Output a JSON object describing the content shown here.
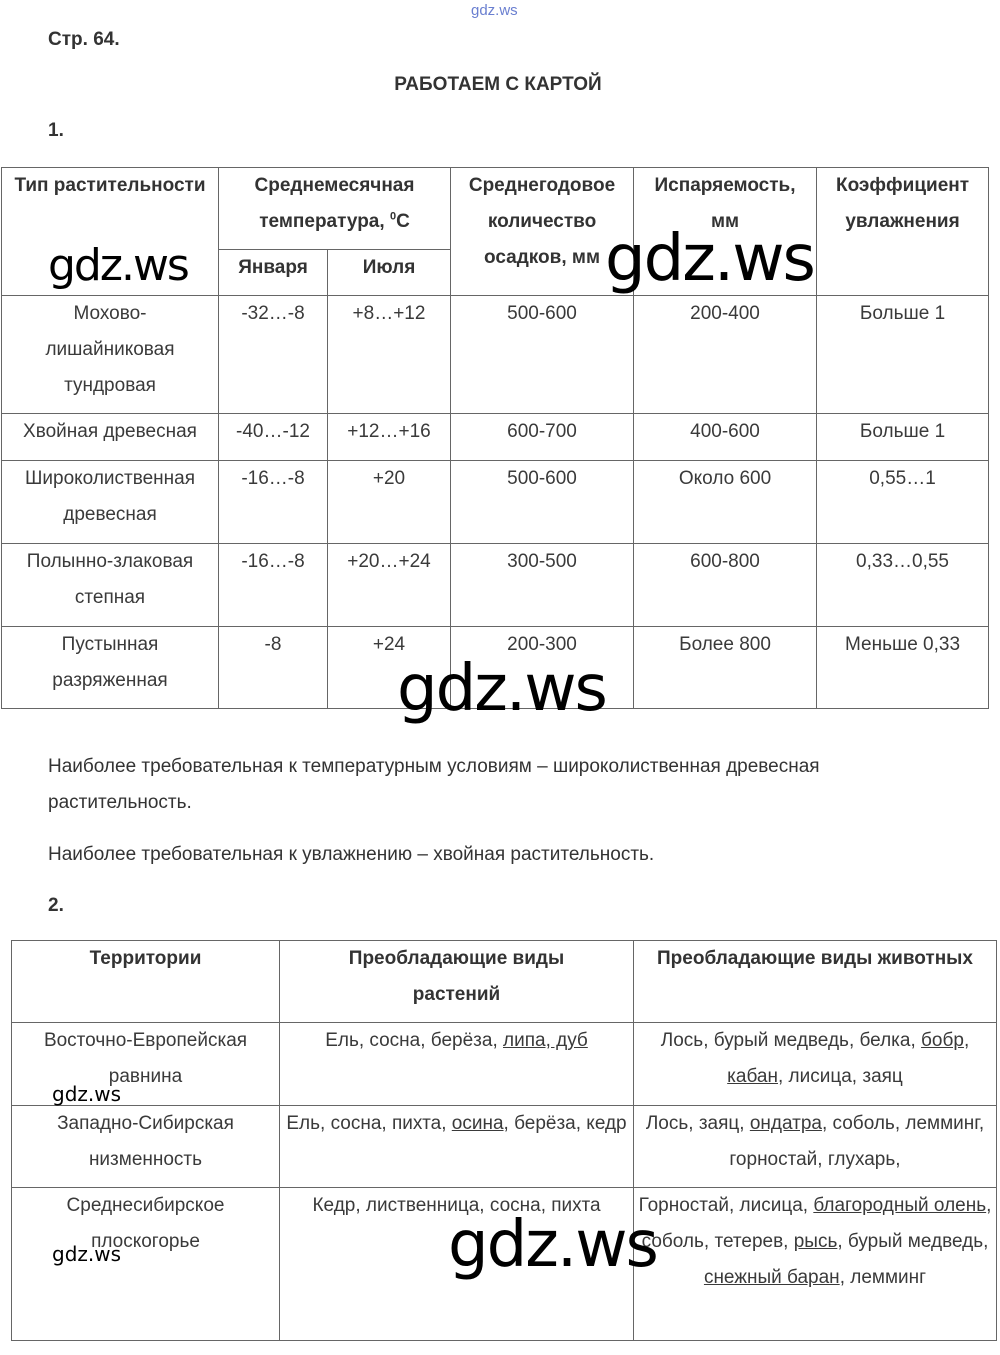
{
  "watermarks": {
    "top": "gdz.ws",
    "main": "gdz.ws"
  },
  "page_ref": "Стр. 64.",
  "title": "РАБОТАЕМ С КАРТОЙ",
  "task1": {
    "number": "1.",
    "headers": {
      "type": "Тип растительности",
      "temp": "Среднемесячная температура, ",
      "temp_unit_sup": "0",
      "temp_unit": "С",
      "jan": "Января",
      "jul": "Июля",
      "precip": "Среднегодовое количество осадков, мм",
      "evap": "Испаряемость, мм",
      "coef": "Коэффициент увлажнения"
    },
    "rows": [
      [
        "Мохово-лишайниковая тундровая",
        "-32…-8",
        "+8…+12",
        "500-600",
        "200-400",
        "Больше 1"
      ],
      [
        "Хвойная древесная",
        "-40…-12",
        "+12…+16",
        "600-700",
        "400-600",
        "Больше 1"
      ],
      [
        "Широколиственная древесная",
        "-16…-8",
        "+20",
        "500-600",
        "Около 600",
        "0,55…1"
      ],
      [
        "Полынно-злаковая степная",
        "-16…-8",
        "+20…+24",
        "300-500",
        "600-800",
        "0,33…0,55"
      ],
      [
        "Пустынная разряженная",
        "-8",
        "+24",
        "200-300",
        "Более 800",
        "Меньше 0,33"
      ]
    ],
    "conclusion1": "Наиболее требовательная к температурным условиям – широколиственная древесная растительность.",
    "conclusion2": "Наиболее требовательная к увлажнению – хвойная растительность."
  },
  "task2": {
    "number": "2.",
    "headers": [
      "Территории",
      "Преобладающие виды растений",
      "Преобладающие виды животных"
    ],
    "rows": [
      {
        "territory": "Восточно-Европейская равнина",
        "plants": [
          {
            "t": "Ель, сосна, берёза, "
          },
          {
            "t": "липа, дуб",
            "u": true
          }
        ],
        "animals": [
          {
            "t": "Лось, бурый медведь, белка, "
          },
          {
            "t": "бобр",
            "u": true
          },
          {
            "t": ", "
          },
          {
            "t": "кабан",
            "u": true
          },
          {
            "t": ", лисица, заяц"
          }
        ]
      },
      {
        "territory": "Западно-Сибирская низменность",
        "plants": [
          {
            "t": "Ель, сосна, пихта, "
          },
          {
            "t": "осина",
            "u": true
          },
          {
            "t": ", берёза, кедр"
          }
        ],
        "animals": [
          {
            "t": "Лось, заяц, "
          },
          {
            "t": "ондатра",
            "u": true
          },
          {
            "t": ", соболь, лемминг, горностай, глухарь,"
          }
        ]
      },
      {
        "territory": "Среднесибирское плоскогорье",
        "plants": [
          {
            "t": "Кедр, лиственница, сосна, пихта"
          }
        ],
        "animals": [
          {
            "t": "Горностай, лисица, "
          },
          {
            "t": "благородный олень",
            "u": true
          },
          {
            "t": ", соболь, тетерев, "
          },
          {
            "t": "рысь",
            "u": true
          },
          {
            "t": ", бурый медведь, "
          },
          {
            "t": "снежный баран",
            "u": true
          },
          {
            "t": ", лемминг"
          }
        ]
      }
    ]
  }
}
